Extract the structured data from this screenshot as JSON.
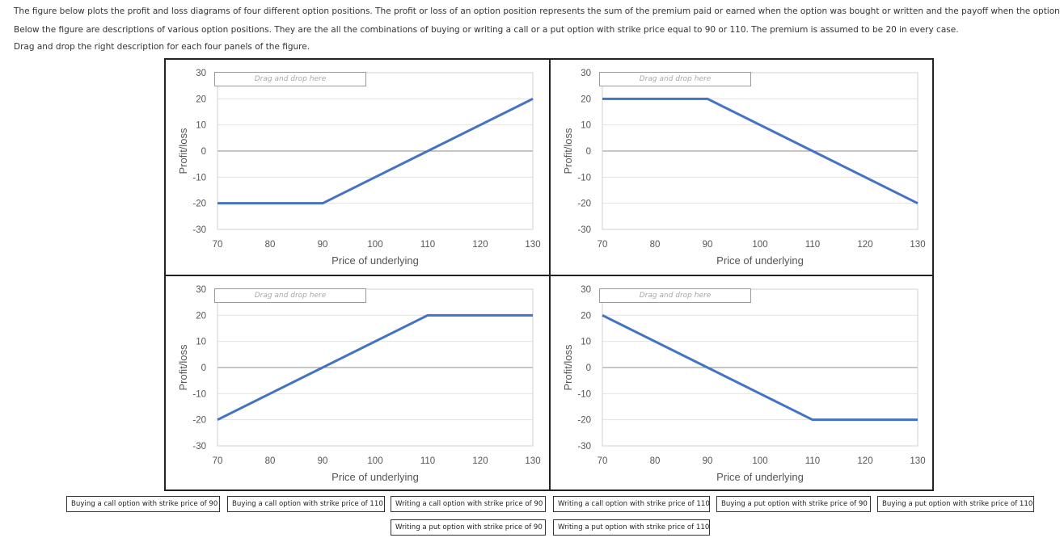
{
  "instructions": [
    "The figure below plots the profit and loss diagrams of four different option positions. The profit or loss of an option position represents the sum of the premium paid or earned when the option was bought or written and the payoff when the option expires.",
    "Below the figure are descriptions of various option positions. They are the all the combinations of buying or writing a call or a put option with strike price equal to 90 or 110. The premium is assumed to be 20 in every case.",
    "Drag and drop the right description for each four panels of the figure."
  ],
  "drop_placeholder": "Drag and drop here",
  "chart_data": [
    {
      "type": "line",
      "panel": "top-left",
      "x": [
        70,
        90,
        130
      ],
      "y": [
        -20,
        -20,
        20
      ],
      "xlabel": "Price of underlying",
      "ylabel": "Profit/loss",
      "xticks": [
        70,
        80,
        90,
        100,
        110,
        120,
        130
      ],
      "yticks": [
        30,
        20,
        10,
        0,
        -10,
        -20,
        -30
      ],
      "xlim": [
        70,
        130
      ],
      "ylim": [
        -30,
        30
      ],
      "color": "#4472C4"
    },
    {
      "type": "line",
      "panel": "top-right",
      "x": [
        70,
        90,
        130
      ],
      "y": [
        20,
        20,
        -20
      ],
      "xlabel": "Price of underlying",
      "ylabel": "Profit/loss",
      "xticks": [
        70,
        80,
        90,
        100,
        110,
        120,
        130
      ],
      "yticks": [
        30,
        20,
        10,
        0,
        -10,
        -20,
        -30
      ],
      "xlim": [
        70,
        130
      ],
      "ylim": [
        -30,
        30
      ],
      "color": "#4472C4"
    },
    {
      "type": "line",
      "panel": "bottom-left",
      "x": [
        70,
        110,
        130
      ],
      "y": [
        -20,
        20,
        20
      ],
      "xlabel": "Price of underlying",
      "ylabel": "Profit/loss",
      "xticks": [
        70,
        80,
        90,
        100,
        110,
        120,
        130
      ],
      "yticks": [
        30,
        20,
        10,
        0,
        -10,
        -20,
        -30
      ],
      "xlim": [
        70,
        130
      ],
      "ylim": [
        -30,
        30
      ],
      "color": "#4472C4"
    },
    {
      "type": "line",
      "panel": "bottom-right",
      "x": [
        70,
        110,
        130
      ],
      "y": [
        20,
        -20,
        -20
      ],
      "xlabel": "Price of underlying",
      "ylabel": "Profit/loss",
      "xticks": [
        70,
        80,
        90,
        100,
        110,
        120,
        130
      ],
      "yticks": [
        30,
        20,
        10,
        0,
        -10,
        -20,
        -30
      ],
      "xlim": [
        70,
        130
      ],
      "ylim": [
        -30,
        30
      ],
      "color": "#4472C4"
    }
  ],
  "options": [
    "Buying a call option with strike price of 90",
    "Buying a call option with strike price of 110",
    "Writing a call option with strike price of 90",
    "Writing a call option with strike price of 110",
    "Buying a put option with strike price of 90",
    "Buying a put option with strike price of 110",
    "Writing a put option with strike price of 90",
    "Writing a put option with strike price of 110"
  ]
}
